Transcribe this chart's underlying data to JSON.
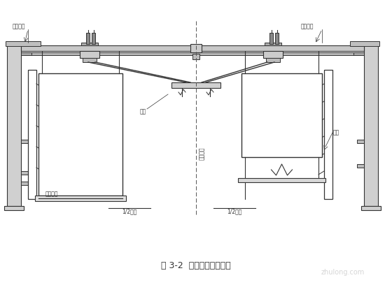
{
  "title": "图 3-2  圆端形翻模总装图",
  "bg_color": "#ffffff",
  "lc": "#333333",
  "fig_width": 5.6,
  "fig_height": 4.11,
  "dpi": 100,
  "labels": {
    "zuoye_pingtai": "作业平台",
    "tijian_xitong": "提升系统",
    "diajia": "吊架",
    "mupan": "模板",
    "jiaotai_dingmian": "垫台顶面",
    "zongxin": "墩中心线",
    "half_bottom": "1/2墩底",
    "half_top": "1/2墩顶"
  }
}
